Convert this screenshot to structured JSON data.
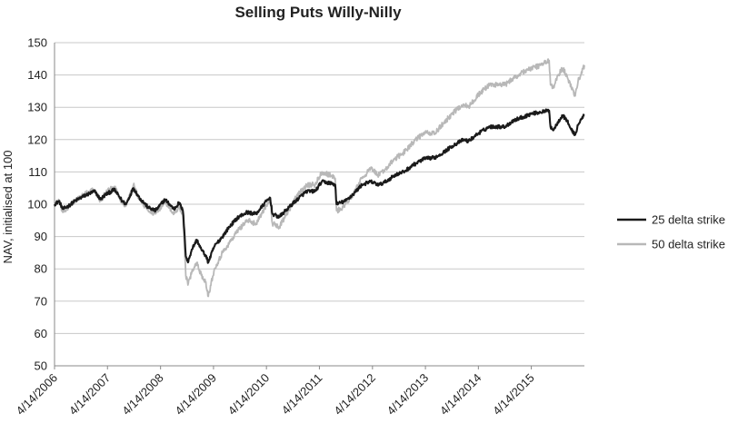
{
  "chart_data": {
    "type": "line",
    "title": "Selling Puts Willy-Nilly",
    "xlabel": "",
    "ylabel": "NAV, initialised at 100",
    "ylim": [
      50,
      150
    ],
    "yticks": [
      50,
      60,
      70,
      80,
      90,
      100,
      110,
      120,
      130,
      140,
      150
    ],
    "xlim": [
      "2006-04-14",
      "2016-04-14"
    ],
    "xtick_labels": [
      "4/14/2006",
      "4/14/2007",
      "4/14/2008",
      "4/14/2009",
      "4/14/2010",
      "4/14/2011",
      "4/14/2012",
      "4/14/2013",
      "4/14/2014",
      "4/14/2015"
    ],
    "grid": "horizontal",
    "legend_position": "right",
    "series": [
      {
        "name": "25 delta strike",
        "color": "#1a1a1a",
        "points": [
          [
            "2006-04-14",
            100
          ],
          [
            "2006-05-15",
            101
          ],
          [
            "2006-06-10",
            98.5
          ],
          [
            "2006-07-20",
            99.5
          ],
          [
            "2006-09-01",
            101
          ],
          [
            "2006-11-01",
            102.5
          ],
          [
            "2007-01-15",
            104
          ],
          [
            "2007-02-25",
            101.5
          ],
          [
            "2007-04-01",
            103
          ],
          [
            "2007-06-01",
            104.5
          ],
          [
            "2007-07-25",
            101
          ],
          [
            "2007-08-20",
            100
          ],
          [
            "2007-10-10",
            105
          ],
          [
            "2007-11-20",
            102
          ],
          [
            "2008-01-20",
            99
          ],
          [
            "2008-03-10",
            98
          ],
          [
            "2008-05-15",
            101.5
          ],
          [
            "2008-07-15",
            98.5
          ],
          [
            "2008-08-20",
            100.5
          ],
          [
            "2008-09-15",
            98
          ],
          [
            "2008-09-25",
            92
          ],
          [
            "2008-10-05",
            84
          ],
          [
            "2008-10-20",
            82
          ],
          [
            "2008-11-15",
            86
          ],
          [
            "2008-12-20",
            89
          ],
          [
            "2009-01-20",
            86
          ],
          [
            "2009-02-20",
            84
          ],
          [
            "2009-03-09",
            82
          ],
          [
            "2009-04-20",
            87
          ],
          [
            "2009-06-15",
            90
          ],
          [
            "2009-08-01",
            93
          ],
          [
            "2009-10-01",
            96
          ],
          [
            "2009-12-01",
            97.5
          ],
          [
            "2010-02-01",
            97
          ],
          [
            "2010-04-15",
            101
          ],
          [
            "2010-05-10",
            102
          ],
          [
            "2010-05-25",
            97
          ],
          [
            "2010-07-10",
            96
          ],
          [
            "2010-09-15",
            99
          ],
          [
            "2010-11-01",
            101
          ],
          [
            "2011-01-15",
            104
          ],
          [
            "2011-03-15",
            104
          ],
          [
            "2011-05-01",
            107
          ],
          [
            "2011-07-01",
            106.5
          ],
          [
            "2011-08-01",
            106
          ],
          [
            "2011-08-10",
            100
          ],
          [
            "2011-09-10",
            100.5
          ],
          [
            "2011-10-10",
            101
          ],
          [
            "2011-12-01",
            103
          ],
          [
            "2012-02-01",
            106
          ],
          [
            "2012-04-01",
            107
          ],
          [
            "2012-05-30",
            106
          ],
          [
            "2012-07-15",
            107
          ],
          [
            "2012-09-15",
            109
          ],
          [
            "2012-11-15",
            110
          ],
          [
            "2013-01-15",
            112
          ],
          [
            "2013-04-01",
            114
          ],
          [
            "2013-06-20",
            114.5
          ],
          [
            "2013-08-15",
            116
          ],
          [
            "2013-10-15",
            118
          ],
          [
            "2014-01-01",
            120
          ],
          [
            "2014-02-05",
            119.5
          ],
          [
            "2014-04-15",
            122
          ],
          [
            "2014-07-01",
            124
          ],
          [
            "2014-10-15",
            124
          ],
          [
            "2014-12-15",
            126
          ],
          [
            "2015-02-15",
            127
          ],
          [
            "2015-04-15",
            128
          ],
          [
            "2015-06-15",
            128.5
          ],
          [
            "2015-08-15",
            129
          ],
          [
            "2015-08-24",
            124
          ],
          [
            "2015-09-15",
            123
          ],
          [
            "2015-10-15",
            125.5
          ],
          [
            "2015-11-15",
            127.5
          ],
          [
            "2015-12-15",
            126
          ],
          [
            "2016-01-15",
            123
          ],
          [
            "2016-02-11",
            121.5
          ],
          [
            "2016-03-01",
            124.5
          ],
          [
            "2016-03-25",
            126.5
          ],
          [
            "2016-04-14",
            127.5
          ]
        ]
      },
      {
        "name": "50 delta strike",
        "color": "#b8b8b8",
        "points": [
          [
            "2006-04-14",
            100
          ],
          [
            "2006-05-15",
            101
          ],
          [
            "2006-06-10",
            97.5
          ],
          [
            "2006-07-20",
            99
          ],
          [
            "2006-09-01",
            101
          ],
          [
            "2006-11-01",
            103
          ],
          [
            "2007-01-15",
            104.5
          ],
          [
            "2007-02-25",
            101
          ],
          [
            "2007-04-01",
            103.5
          ],
          [
            "2007-06-01",
            105.5
          ],
          [
            "2007-07-25",
            100.5
          ],
          [
            "2007-08-20",
            99.5
          ],
          [
            "2007-10-10",
            106
          ],
          [
            "2007-11-20",
            101.5
          ],
          [
            "2008-01-20",
            98
          ],
          [
            "2008-03-10",
            97
          ],
          [
            "2008-05-15",
            101
          ],
          [
            "2008-07-15",
            97
          ],
          [
            "2008-08-20",
            99.5
          ],
          [
            "2008-09-15",
            96
          ],
          [
            "2008-09-25",
            88
          ],
          [
            "2008-10-05",
            78
          ],
          [
            "2008-10-20",
            75
          ],
          [
            "2008-11-15",
            79
          ],
          [
            "2008-12-20",
            82
          ],
          [
            "2009-01-20",
            78
          ],
          [
            "2009-02-20",
            76
          ],
          [
            "2009-03-09",
            71.5
          ],
          [
            "2009-04-20",
            80
          ],
          [
            "2009-06-15",
            85
          ],
          [
            "2009-08-01",
            88
          ],
          [
            "2009-10-01",
            92
          ],
          [
            "2009-12-01",
            95
          ],
          [
            "2010-02-01",
            94
          ],
          [
            "2010-04-15",
            100
          ],
          [
            "2010-05-10",
            101
          ],
          [
            "2010-05-25",
            94
          ],
          [
            "2010-07-10",
            93
          ],
          [
            "2010-09-15",
            98
          ],
          [
            "2010-11-01",
            102
          ],
          [
            "2011-01-15",
            106
          ],
          [
            "2011-03-15",
            106
          ],
          [
            "2011-05-01",
            110
          ],
          [
            "2011-07-01",
            109
          ],
          [
            "2011-08-01",
            108
          ],
          [
            "2011-08-10",
            98
          ],
          [
            "2011-09-10",
            98.5
          ],
          [
            "2011-10-10",
            100
          ],
          [
            "2011-12-01",
            103
          ],
          [
            "2012-02-01",
            108
          ],
          [
            "2012-04-01",
            111
          ],
          [
            "2012-05-30",
            109
          ],
          [
            "2012-07-15",
            111
          ],
          [
            "2012-09-15",
            114
          ],
          [
            "2012-11-15",
            116
          ],
          [
            "2013-01-15",
            119
          ],
          [
            "2013-04-01",
            122
          ],
          [
            "2013-06-20",
            122
          ],
          [
            "2013-08-15",
            125
          ],
          [
            "2013-10-15",
            128
          ],
          [
            "2014-01-01",
            131
          ],
          [
            "2014-02-05",
            130
          ],
          [
            "2014-04-15",
            134
          ],
          [
            "2014-07-01",
            137
          ],
          [
            "2014-10-15",
            137
          ],
          [
            "2014-12-15",
            139
          ],
          [
            "2015-02-15",
            141
          ],
          [
            "2015-04-15",
            142
          ],
          [
            "2015-06-15",
            143
          ],
          [
            "2015-08-15",
            144.5
          ],
          [
            "2015-08-24",
            137
          ],
          [
            "2015-09-15",
            136
          ],
          [
            "2015-10-15",
            140
          ],
          [
            "2015-11-15",
            142
          ],
          [
            "2015-12-15",
            140
          ],
          [
            "2016-01-15",
            136
          ],
          [
            "2016-02-11",
            133.5
          ],
          [
            "2016-03-01",
            138
          ],
          [
            "2016-03-25",
            141
          ],
          [
            "2016-04-14",
            143
          ]
        ]
      }
    ]
  }
}
